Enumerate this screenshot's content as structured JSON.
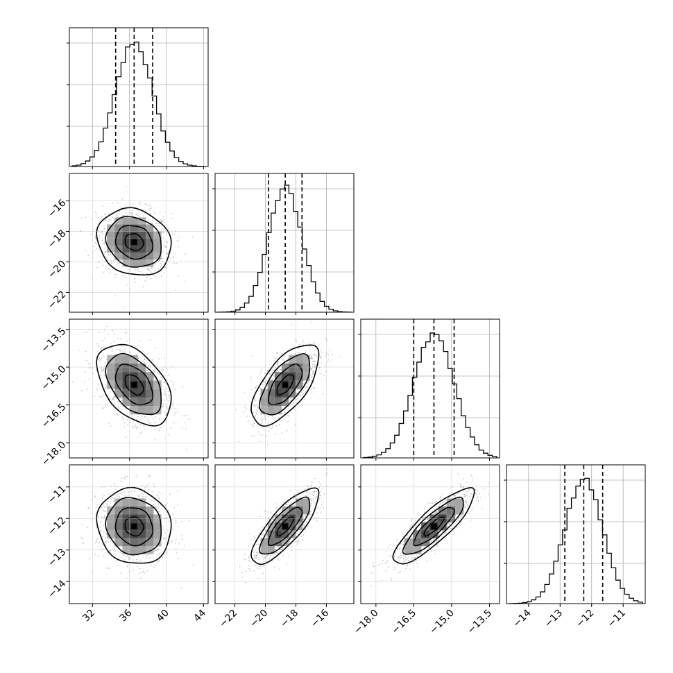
{
  "chart_data": {
    "type": "corner",
    "grid": true,
    "colors": {
      "mark": "#000000",
      "grid": "#b0b0b0",
      "scatter": "#9a9a9a"
    },
    "params": [
      {
        "index": 0,
        "median": 36.5,
        "q16": 34.5,
        "q84": 38.5,
        "sigma": 2.0,
        "range": [
          29.5,
          44.5
        ],
        "ticks": [
          32,
          36,
          40,
          44
        ],
        "tick_labels": [
          "32",
          "36",
          "40",
          "44"
        ]
      },
      {
        "index": 1,
        "median": -18.7,
        "q16": -19.8,
        "q84": -17.6,
        "sigma": 1.1,
        "range": [
          -23.3,
          -14.2
        ],
        "ticks": [
          -22,
          -20,
          -18,
          -16
        ],
        "tick_labels": [
          "−22",
          "−20",
          "−18",
          "−16"
        ]
      },
      {
        "index": 2,
        "median": -15.7,
        "q16": -16.5,
        "q84": -14.9,
        "sigma": 0.8,
        "range": [
          -18.6,
          -13.1
        ],
        "ticks": [
          -18.0,
          -16.5,
          -15.0,
          -13.5
        ],
        "tick_labels": [
          "−18.0",
          "−16.5",
          "−15.0",
          "−13.5"
        ]
      },
      {
        "index": 3,
        "median": -12.25,
        "q16": -12.85,
        "q84": -11.65,
        "sigma": 0.6,
        "range": [
          -14.7,
          -10.3
        ],
        "ticks": [
          -14,
          -13,
          -12,
          -11
        ],
        "tick_labels": [
          "−14",
          "−13",
          "−12",
          "−11"
        ]
      }
    ],
    "correlations": [
      {
        "x": 0,
        "y": 1,
        "rho": -0.15
      },
      {
        "x": 0,
        "y": 2,
        "rho": -0.45
      },
      {
        "x": 1,
        "y": 2,
        "rho": 0.65
      },
      {
        "x": 0,
        "y": 3,
        "rho": -0.1
      },
      {
        "x": 1,
        "y": 3,
        "rho": 0.8
      },
      {
        "x": 2,
        "y": 3,
        "rho": 0.85
      }
    ],
    "diagonal_hist_ticks": 3,
    "contour_levels": [
      0.5,
      1.0,
      1.5,
      2.0
    ]
  }
}
